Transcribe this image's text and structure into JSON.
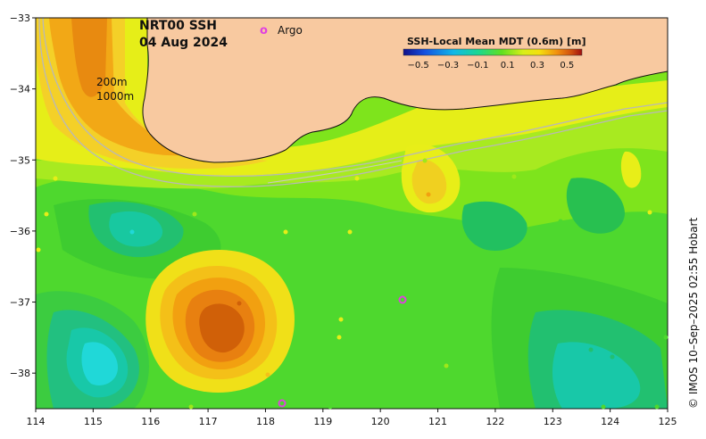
{
  "header": {
    "title": "NRT00 SSH",
    "date": "04 Aug 2024",
    "argo_marker": "o",
    "argo_label": "Argo"
  },
  "contour_labels": {
    "c200": "200m",
    "c1000": "1000m"
  },
  "colorbar": {
    "title": "SSH-Local Mean MDT (0.6m) [m]",
    "ticks": [
      "−0.5",
      "−0.3",
      "−0.1",
      "0.1",
      "0.3",
      "0.5"
    ],
    "tick_values": [
      -0.5,
      -0.3,
      -0.1,
      0.1,
      0.3,
      0.5
    ],
    "range": [
      -0.6,
      0.6
    ]
  },
  "axes": {
    "x_ticks": [
      "114",
      "115",
      "116",
      "117",
      "118",
      "119",
      "120",
      "121",
      "122",
      "123",
      "124",
      "125"
    ],
    "y_ticks": [
      "−33",
      "−34",
      "−35",
      "−36",
      "−37",
      "−38"
    ]
  },
  "credit": "© IMOS 10–Sep–2025 02:55 Hobart",
  "colors": {
    "land": "#f8c9a0",
    "argo": "#e040e0",
    "high": "#c05a00",
    "mid_high": "#f0a020",
    "yellow": "#f0f020",
    "green_yellow": "#9ee81a",
    "green": "#3ed63e",
    "teal": "#18c8a0",
    "cyan": "#20d8d8"
  }
}
